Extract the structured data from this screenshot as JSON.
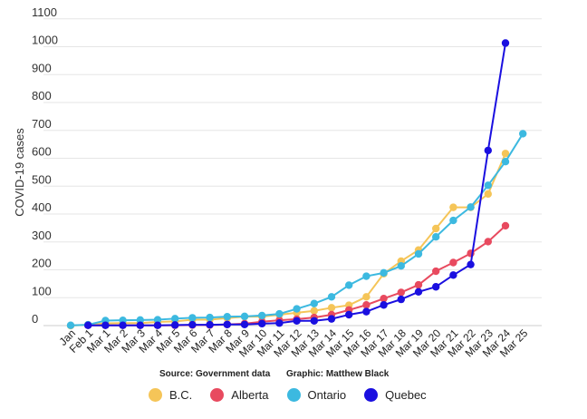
{
  "chart_data": {
    "type": "line",
    "title": "",
    "xlabel": "",
    "ylabel": "COVID-19 cases",
    "ylim": [
      0,
      1100
    ],
    "yticks": [
      0,
      100,
      200,
      300,
      400,
      500,
      600,
      700,
      800,
      900,
      1000,
      1100
    ],
    "grid": true,
    "legend_position": "bottom",
    "categories": [
      "Jan",
      "Feb 1",
      "Mar 1",
      "Mar 2",
      "Mar 3",
      "Mar 4",
      "Mar 5",
      "Mar 6",
      "Mar 7",
      "Mar 8",
      "Mar 9",
      "Mar 10",
      "Mar 11",
      "Mar 12",
      "Mar 13",
      "Mar 14",
      "Mar 15",
      "Mar 16",
      "Mar 17",
      "Mar 18",
      "Mar 19",
      "Mar 20",
      "Mar 21",
      "Mar 22",
      "Mar 23",
      "Mar 24",
      "Mar 25"
    ],
    "series": [
      {
        "name": "B.C.",
        "color": "#f5c558",
        "values": [
          0,
          3,
          8,
          9,
          9,
          13,
          15,
          21,
          21,
          27,
          32,
          32,
          39,
          46,
          53,
          64,
          73,
          103,
          186,
          231,
          271,
          348,
          424,
          424,
          472,
          617,
          null
        ]
      },
      {
        "name": "Alberta",
        "color": "#e84a5f",
        "values": [
          null,
          1,
          1,
          1,
          1,
          1,
          1,
          2,
          2,
          4,
          7,
          14,
          19,
          23,
          29,
          39,
          56,
          74,
          97,
          119,
          146,
          195,
          226,
          259,
          301,
          358,
          null
        ]
      },
      {
        "name": "Ontario",
        "color": "#3cb9e0",
        "values": [
          1,
          3,
          18,
          19,
          20,
          21,
          25,
          28,
          29,
          32,
          33,
          36,
          42,
          60,
          79,
          103,
          145,
          177,
          189,
          214,
          257,
          318,
          377,
          425,
          503,
          588,
          688
        ]
      },
      {
        "name": "Quebec",
        "color": "#1a0fe0",
        "values": [
          null,
          1,
          1,
          1,
          1,
          1,
          2,
          3,
          3,
          4,
          4,
          7,
          9,
          17,
          17,
          24,
          39,
          50,
          74,
          94,
          121,
          139,
          181,
          219,
          628,
          1013,
          null
        ]
      }
    ]
  },
  "footer": {
    "source": "Source: Government data",
    "graphic": "Graphic: Matthew Black"
  }
}
